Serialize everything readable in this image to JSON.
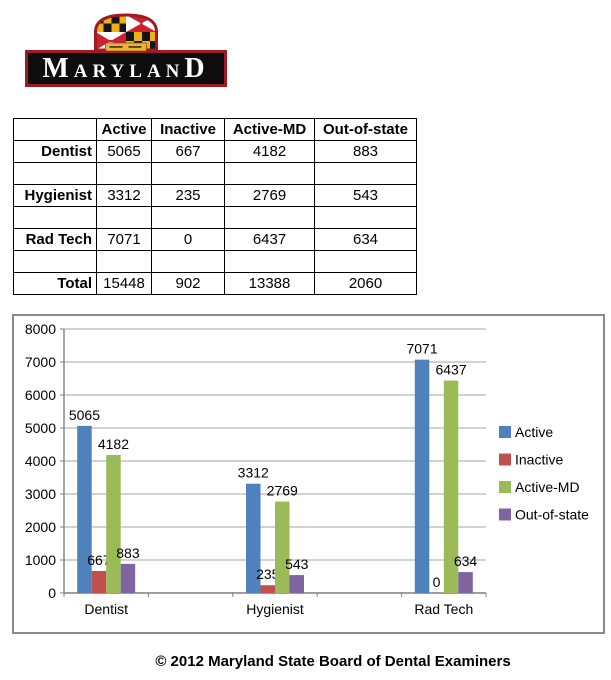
{
  "logo": {
    "title": "MARYLAND",
    "crest_icon": "maryland-flag-crest-icon",
    "colors": {
      "banner_background": "#0D0D0D",
      "border_red": "#9E1C21",
      "flag_red": "#CE2030",
      "flag_gold": "#EEB211",
      "flag_black": "#141414",
      "scroll_gold": "#E9B63B"
    }
  },
  "table": {
    "headers": [
      "",
      "Active",
      "Inactive",
      "Active-MD",
      "Out-of-state"
    ],
    "rows": [
      {
        "label": "Dentist",
        "values": [
          "5065",
          "667",
          "4182",
          "883"
        ]
      },
      {
        "label": "",
        "values": [
          "",
          "",
          "",
          ""
        ]
      },
      {
        "label": "Hygienist",
        "values": [
          "3312",
          "235",
          "2769",
          "543"
        ]
      },
      {
        "label": "",
        "values": [
          "",
          "",
          "",
          ""
        ]
      },
      {
        "label": "Rad Tech",
        "values": [
          "7071",
          "0",
          "6437",
          "634"
        ]
      },
      {
        "label": "",
        "values": [
          "",
          "",
          "",
          ""
        ]
      },
      {
        "label": "Total",
        "values": [
          "15448",
          "902",
          "13388",
          "2060"
        ]
      }
    ]
  },
  "chart_data": {
    "type": "bar",
    "categories": [
      "Dentist",
      "Hygienist",
      "Rad Tech"
    ],
    "series": [
      {
        "name": "Active",
        "color": "#4F81BD",
        "values": [
          5065,
          3312,
          7071
        ]
      },
      {
        "name": "Inactive",
        "color": "#C0504D",
        "values": [
          667,
          235,
          0
        ]
      },
      {
        "name": "Active-MD",
        "color": "#9BBB59",
        "values": [
          4182,
          2769,
          6437
        ]
      },
      {
        "name": "Out-of-state",
        "color": "#8064A2",
        "values": [
          883,
          543,
          634
        ]
      }
    ],
    "title": "",
    "xlabel": "",
    "ylabel": "",
    "ylim": [
      0,
      8000
    ],
    "ytick_interval": 1000,
    "ytick_labels": [
      "0",
      "1000",
      "2000",
      "3000",
      "4000",
      "5000",
      "6000",
      "7000",
      "8000"
    ],
    "grid": "horizontal",
    "gridline_color": "#A6A6A6",
    "axis_color": "#7F7F7F",
    "label_color": "#000000",
    "legend_position": "right",
    "data_labels": "outside-end"
  },
  "footer": {
    "text": "© 2012 Maryland State Board of Dental Examiners"
  }
}
